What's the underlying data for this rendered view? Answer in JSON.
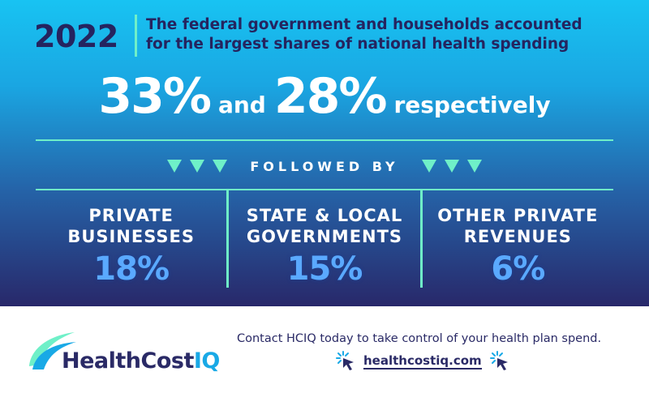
{
  "banner": {
    "year": "2022",
    "headline_line1": "The federal government and households accounted",
    "headline_line2": "for the largest shares of national health spending",
    "stat1": "33%",
    "and_word": "and",
    "stat2": "28%",
    "respectively_word": "respectively",
    "followed_by": "FOLLOWED BY",
    "columns": [
      {
        "label": "PRIVATE\nBUSINESSES",
        "pct": "18%"
      },
      {
        "label": "STATE & LOCAL\nGOVERNMENTS",
        "pct": "15%"
      },
      {
        "label": "OTHER PRIVATE\nREVENUES",
        "pct": "6%"
      }
    ]
  },
  "colors": {
    "navy": "#25245f",
    "mint": "#6ff0c8",
    "cyan": "#18c3f2",
    "pct_blue": "#5aa9ff"
  },
  "footer": {
    "logo_main": "HealthCost",
    "logo_accent": "IQ",
    "contact": "Contact HCIQ today to take control of your health plan spend.",
    "site": "healthcostiq.com",
    "icons": [
      "cursor-click-icon",
      "cursor-click-icon"
    ]
  }
}
